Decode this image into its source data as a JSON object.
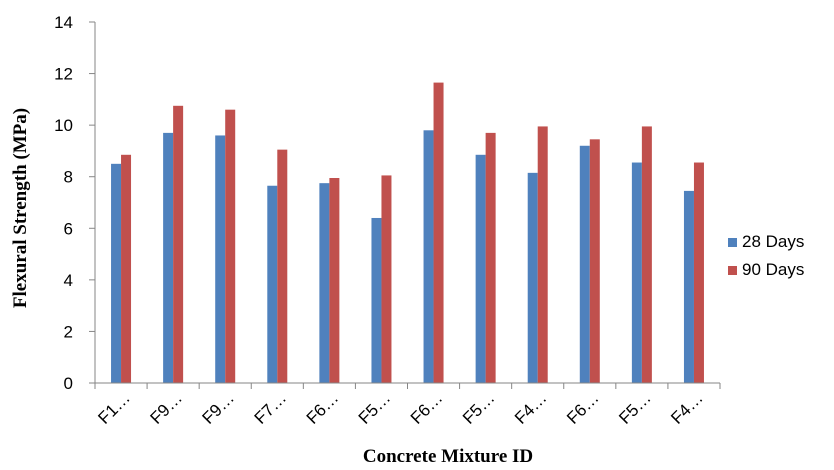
{
  "chart_data": {
    "type": "bar",
    "categories": [
      "F1…",
      "F9…",
      "F9…",
      "F7…",
      "F6…",
      "F5…",
      "F6…",
      "F5…",
      "F4…",
      "F6…",
      "F5…",
      "F4…"
    ],
    "series": [
      {
        "name": "28 Days",
        "color": "#4f81bd",
        "values": [
          8.5,
          9.7,
          9.6,
          7.65,
          7.75,
          6.4,
          9.8,
          8.85,
          8.15,
          9.2,
          8.55,
          7.45
        ]
      },
      {
        "name": "90 Days",
        "color": "#c0504d",
        "values": [
          8.85,
          10.75,
          10.6,
          9.05,
          7.95,
          8.05,
          11.65,
          9.7,
          9.95,
          9.45,
          9.95,
          8.55
        ]
      }
    ],
    "xlabel": "Concrete Mixture ID",
    "ylabel": "Flexural Strength (MPa)",
    "ylim": [
      0,
      14
    ],
    "yticks": [
      "0",
      "2",
      "4",
      "6",
      "8",
      "10",
      "12",
      "14"
    ],
    "grid": false,
    "legend_position": "right"
  }
}
